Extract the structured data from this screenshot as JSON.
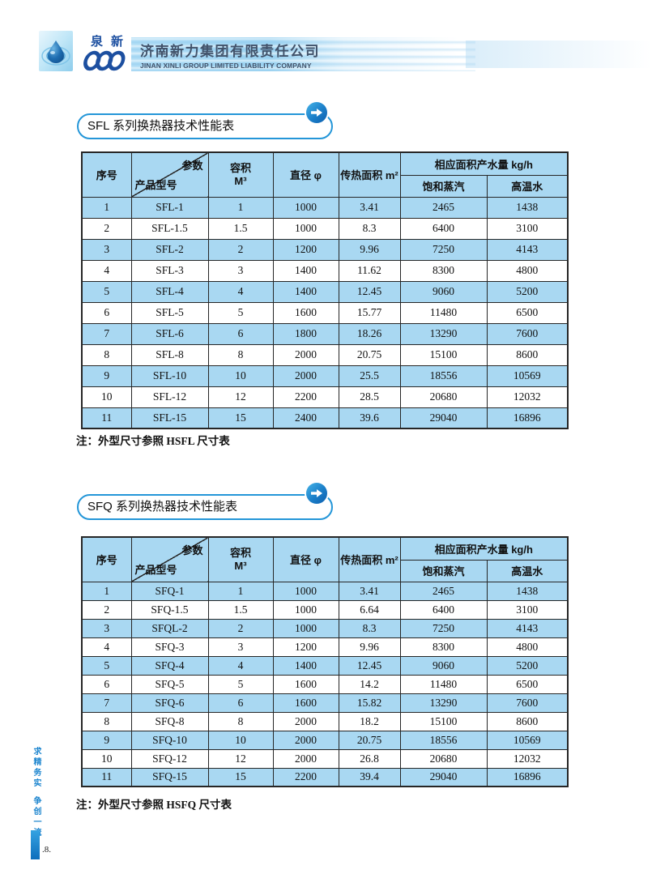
{
  "header": {
    "logo_text": "泉新",
    "company_name_zh": "济南新力集团有限责任公司",
    "company_name_en": "JINAN XINLI GROUP LIMITED LIABILITY COMPANY"
  },
  "sidebar": {
    "slogan_top": "求精务实",
    "slogan_bottom": "争创一流"
  },
  "page_number": ".8.",
  "colors": {
    "table_header_blue": "#a9d8f2",
    "row_stripe_blue": "#a9d8f2",
    "bubble_border_blue": "#2496d8",
    "logo_blue": "#1c4fa0",
    "badge_blue": "#1a7ec8"
  },
  "tables": [
    {
      "title": "SFL 系列换热器技术性能表",
      "note": "注：外型尺寸参照 HSFL 尺寸表",
      "header": {
        "col_index": "序号",
        "diag_top": "参数",
        "diag_bottom": "产品型号",
        "volume_label": "容积",
        "volume_unit": "M³",
        "diameter": "直径 φ",
        "area": "传热面积 m²",
        "yield_group": "相应面积产水量 kg/h",
        "steam": "饱和蒸汽",
        "hot_water": "高温水"
      },
      "rows": [
        [
          "1",
          "SFL-1",
          "1",
          "1000",
          "3.41",
          "2465",
          "1438"
        ],
        [
          "2",
          "SFL-1.5",
          "1.5",
          "1000",
          "8.3",
          "6400",
          "3100"
        ],
        [
          "3",
          "SFL-2",
          "2",
          "1200",
          "9.96",
          "7250",
          "4143"
        ],
        [
          "4",
          "SFL-3",
          "3",
          "1400",
          "11.62",
          "8300",
          "4800"
        ],
        [
          "5",
          "SFL-4",
          "4",
          "1400",
          "12.45",
          "9060",
          "5200"
        ],
        [
          "6",
          "SFL-5",
          "5",
          "1600",
          "15.77",
          "11480",
          "6500"
        ],
        [
          "7",
          "SFL-6",
          "6",
          "1800",
          "18.26",
          "13290",
          "7600"
        ],
        [
          "8",
          "SFL-8",
          "8",
          "2000",
          "20.75",
          "15100",
          "8600"
        ],
        [
          "9",
          "SFL-10",
          "10",
          "2000",
          "25.5",
          "18556",
          "10569"
        ],
        [
          "10",
          "SFL-12",
          "12",
          "2200",
          "28.5",
          "20680",
          "12032"
        ],
        [
          "11",
          "SFL-15",
          "15",
          "2400",
          "39.6",
          "29040",
          "16896"
        ]
      ]
    },
    {
      "title": "SFQ 系列换热器技术性能表",
      "note": "注：外型尺寸参照 HSFQ 尺寸表",
      "header": {
        "col_index": "序号",
        "diag_top": "参数",
        "diag_bottom": "产品型号",
        "volume_label": "容积",
        "volume_unit": "M³",
        "diameter": "直径 φ",
        "area": "传热面积 m²",
        "yield_group": "相应面积产水量 kg/h",
        "steam": "饱和蒸汽",
        "hot_water": "高温水"
      },
      "rows": [
        [
          "1",
          "SFQ-1",
          "1",
          "1000",
          "3.41",
          "2465",
          "1438"
        ],
        [
          "2",
          "SFQ-1.5",
          "1.5",
          "1000",
          "6.64",
          "6400",
          "3100"
        ],
        [
          "3",
          "SFQL-2",
          "2",
          "1000",
          "8.3",
          "7250",
          "4143"
        ],
        [
          "4",
          "SFQ-3",
          "3",
          "1200",
          "9.96",
          "8300",
          "4800"
        ],
        [
          "5",
          "SFQ-4",
          "4",
          "1400",
          "12.45",
          "9060",
          "5200"
        ],
        [
          "6",
          "SFQ-5",
          "5",
          "1600",
          "14.2",
          "11480",
          "6500"
        ],
        [
          "7",
          "SFQ-6",
          "6",
          "1600",
          "15.82",
          "13290",
          "7600"
        ],
        [
          "8",
          "SFQ-8",
          "8",
          "2000",
          "18.2",
          "15100",
          "8600"
        ],
        [
          "9",
          "SFQ-10",
          "10",
          "2000",
          "20.75",
          "18556",
          "10569"
        ],
        [
          "10",
          "SFQ-12",
          "12",
          "2000",
          "26.8",
          "20680",
          "12032"
        ],
        [
          "11",
          "SFQ-15",
          "15",
          "2200",
          "39.4",
          "29040",
          "16896"
        ]
      ]
    }
  ]
}
